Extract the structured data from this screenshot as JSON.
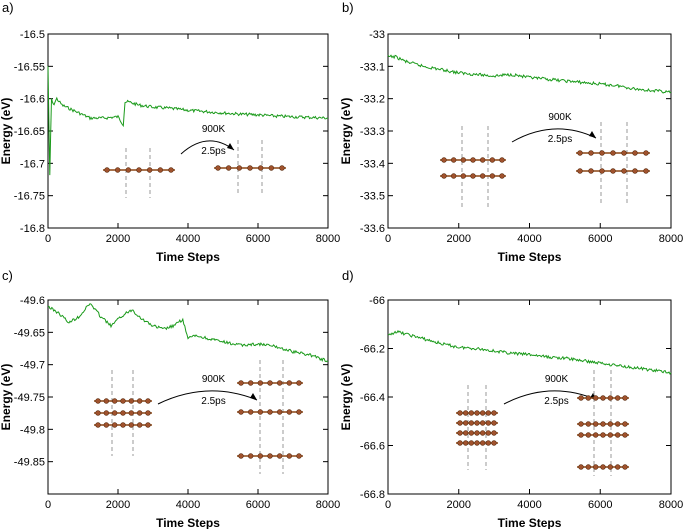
{
  "chart_data": [
    {
      "panel_label": "a)",
      "type": "line",
      "xlabel": "Time Steps",
      "ylabel": "Energy (eV)",
      "xlim": [
        0,
        8000
      ],
      "ylim": [
        -16.8,
        -16.5
      ],
      "xticks": [
        "0",
        "2000",
        "4000",
        "6000",
        "8000"
      ],
      "yticks": [
        "-16.5",
        "-16.55",
        "-16.6",
        "-16.65",
        "-16.7",
        "-16.75",
        "-16.8"
      ],
      "series": [
        {
          "name": "Energy",
          "color": "#1a9a1a",
          "x": [
            0,
            50,
            100,
            150,
            250,
            400,
            600,
            800,
            1000,
            1200,
            1600,
            2000,
            2150,
            2200,
            2300,
            2600,
            3000,
            3500,
            4000,
            4500,
            5000,
            5500,
            6000,
            6500,
            7000,
            7500,
            8000
          ],
          "y": [
            -16.55,
            -16.72,
            -16.6,
            -16.61,
            -16.6,
            -16.61,
            -16.615,
            -16.62,
            -16.625,
            -16.63,
            -16.63,
            -16.628,
            -16.64,
            -16.605,
            -16.605,
            -16.61,
            -16.613,
            -16.615,
            -16.618,
            -16.62,
            -16.622,
            -16.624,
            -16.625,
            -16.627,
            -16.628,
            -16.629,
            -16.63
          ]
        }
      ],
      "annotation": {
        "top": "900K",
        "bottom": "2.5ps"
      },
      "insets": {
        "before_layers": 1,
        "after_layers": 1
      }
    },
    {
      "panel_label": "b)",
      "type": "line",
      "xlabel": "Time Steps",
      "ylabel": "Energy (eV)",
      "xlim": [
        0,
        8000
      ],
      "ylim": [
        -33.6,
        -33.0
      ],
      "xticks": [
        "0",
        "2000",
        "4000",
        "6000",
        "8000"
      ],
      "yticks": [
        "-33",
        "-33.1",
        "-33.2",
        "-33.3",
        "-33.4",
        "-33.5",
        "-33.6"
      ],
      "series": [
        {
          "name": "Energy",
          "color": "#1a9a1a",
          "x": [
            0,
            200,
            500,
            1000,
            1500,
            2000,
            2500,
            3000,
            3500,
            4000,
            4500,
            5000,
            5500,
            6000,
            6500,
            7000,
            7500,
            8000
          ],
          "y": [
            -33.07,
            -33.07,
            -33.085,
            -33.1,
            -33.11,
            -33.12,
            -33.125,
            -33.13,
            -33.125,
            -33.135,
            -33.14,
            -33.145,
            -33.15,
            -33.155,
            -33.16,
            -33.17,
            -33.175,
            -33.18
          ]
        }
      ],
      "annotation": {
        "top": "900K",
        "bottom": "2.5ps"
      },
      "insets": {
        "before_layers": 2,
        "after_layers": 2
      }
    },
    {
      "panel_label": "c)",
      "type": "line",
      "xlabel": "Time Steps",
      "ylabel": "Energy (eV)",
      "xlim": [
        0,
        8000
      ],
      "ylim": [
        -49.9,
        -49.6
      ],
      "xticks": [
        "0",
        "2000",
        "4000",
        "6000",
        "8000"
      ],
      "yticks": [
        "-49.6",
        "-49.65",
        "-49.7",
        "-49.75",
        "-49.8",
        "-49.85"
      ],
      "series": [
        {
          "name": "Energy",
          "color": "#1a9a1a",
          "x": [
            0,
            300,
            600,
            900,
            1200,
            1500,
            1800,
            2100,
            2400,
            2700,
            3000,
            3300,
            3600,
            3850,
            4000,
            4200,
            4600,
            5000,
            5500,
            6000,
            6500,
            7000,
            7500,
            8000
          ],
          "y": [
            -49.61,
            -49.62,
            -49.635,
            -49.625,
            -49.605,
            -49.625,
            -49.64,
            -49.625,
            -49.615,
            -49.63,
            -49.64,
            -49.645,
            -49.64,
            -49.63,
            -49.66,
            -49.655,
            -49.66,
            -49.665,
            -49.67,
            -49.668,
            -49.672,
            -49.68,
            -49.685,
            -49.695
          ]
        }
      ],
      "annotation": {
        "top": "900K",
        "bottom": "2.5ps"
      },
      "insets": {
        "before_layers": 3,
        "after_layers": 3
      }
    },
    {
      "panel_label": "d)",
      "type": "line",
      "xlabel": "Time Steps",
      "ylabel": "Energy (eV)",
      "xlim": [
        0,
        8000
      ],
      "ylim": [
        -66.8,
        -66.0
      ],
      "xticks": [
        "0",
        "2000",
        "4000",
        "6000",
        "8000"
      ],
      "yticks": [
        "-66",
        "-66.2",
        "-66.4",
        "-66.6",
        "-66.8"
      ],
      "series": [
        {
          "name": "Energy",
          "color": "#1a9a1a",
          "x": [
            0,
            200,
            500,
            1000,
            1500,
            2000,
            2500,
            3000,
            3500,
            4000,
            4500,
            5000,
            5500,
            6000,
            6500,
            7000,
            7500,
            8000
          ],
          "y": [
            -66.15,
            -66.13,
            -66.14,
            -66.16,
            -66.18,
            -66.195,
            -66.2,
            -66.21,
            -66.22,
            -66.225,
            -66.235,
            -66.24,
            -66.25,
            -66.26,
            -66.27,
            -66.28,
            -66.29,
            -66.3
          ]
        }
      ],
      "annotation": {
        "top": "900K",
        "bottom": "2.5ps"
      },
      "insets": {
        "before_layers": 4,
        "after_layers": 4
      }
    }
  ],
  "colors": {
    "line": "#1a9a1a",
    "atom": "#a0522d",
    "bond": "#8b4513",
    "dash": "#999999"
  }
}
